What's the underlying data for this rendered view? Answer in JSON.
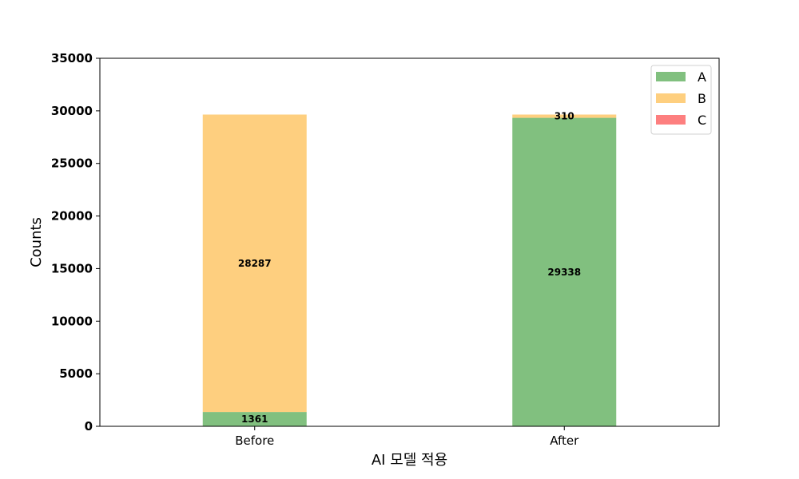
{
  "chart_data": {
    "type": "bar",
    "stacked": true,
    "categories": [
      "Before",
      "After"
    ],
    "series": [
      {
        "name": "A",
        "values": [
          1361,
          29338
        ],
        "color": "#81c07f"
      },
      {
        "name": "B",
        "values": [
          28287,
          310
        ],
        "color": "#fecf7f"
      },
      {
        "name": "C",
        "values": [
          0,
          0
        ],
        "color": "#fd7f7f"
      }
    ],
    "data_labels": [
      {
        "category": "Before",
        "series": "A",
        "text": "1361"
      },
      {
        "category": "Before",
        "series": "B",
        "text": "28287"
      },
      {
        "category": "After",
        "series": "A",
        "text": "29338"
      },
      {
        "category": "After",
        "series": "B",
        "text": "310"
      }
    ],
    "title": "",
    "xlabel": "AI 모델 적용",
    "ylabel": "Counts",
    "ylim": [
      0,
      35000
    ],
    "yticks": [
      0,
      5000,
      10000,
      15000,
      20000,
      25000,
      30000,
      35000
    ],
    "grid": false,
    "legend_position": "top-right"
  }
}
